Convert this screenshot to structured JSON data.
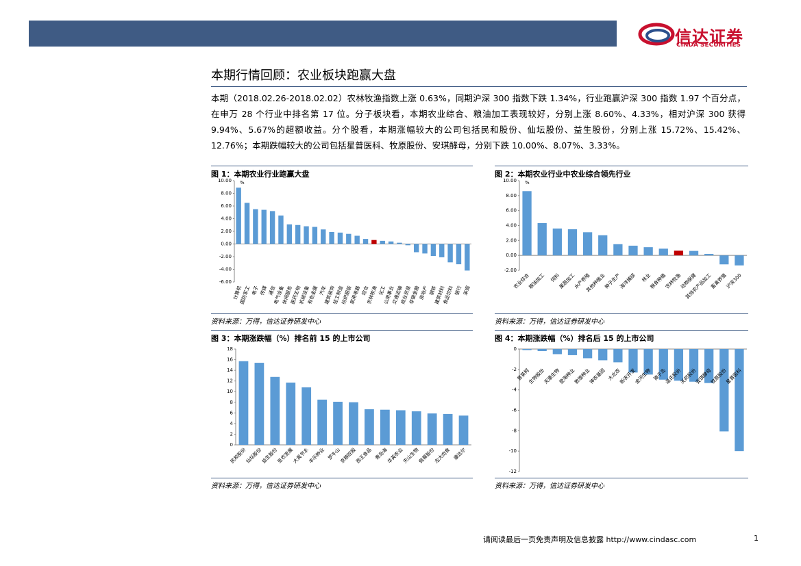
{
  "header": {
    "logo_cn": "信达证券",
    "logo_en": "CINDA SECURITIES"
  },
  "section_title": "本期行情回顾：农业板块跑赢大盘",
  "paragraph": "本期（2018.02.26-2018.02.02）农林牧渔指数上涨 0.63%，同期沪深 300 指数下跌 1.34%，行业跑赢沪深 300 指数 1.97 个百分点，在申万 28 个行业中排名第 17 位。分子板块看，本期农业综合、粮油加工表现较好，分别上涨 8.60%、4.33%，相对沪深 300 获得 9.94%、5.67%的超额收益。分个股看，本期涨幅较大的公司包括民和股份、仙坛股份、益生股份，分别上涨 15.72%、15.42%、12.76%；本期跌幅较大的公司包括星普医科、牧原股份、安琪酵母，分别下跌 10.00%、8.07%、3.33%。",
  "chart_data": [
    {
      "type": "bar",
      "title": "图 1：本期农业行业跑赢大盘",
      "source": "资料来源：万得，信达证券研发中心",
      "unit": "%",
      "color": "#5b9bd5",
      "highlight": {
        "category": "农林牧渔",
        "color": "#c00000"
      },
      "categories": [
        "计算机",
        "国防军工",
        "电子",
        "传媒",
        "通信",
        "电气设备",
        "休闲服务",
        "医药生物",
        "机械设备",
        "有色金属",
        "汽车",
        "建筑装饰",
        "轻工制造",
        "纺织服装",
        "家用电器",
        "综合",
        "农林牧渔",
        "化工",
        "公用事业",
        "交通运输",
        "商业贸易",
        "非银金融",
        "房地产",
        "钢铁",
        "建筑材料",
        "食品饮料",
        "银行",
        "采掘"
      ],
      "values": [
        8.9,
        6.5,
        5.5,
        5.4,
        5.2,
        4.5,
        3.1,
        3.0,
        2.8,
        2.7,
        2.3,
        1.9,
        1.8,
        1.6,
        1.3,
        0.8,
        0.63,
        0.5,
        0.4,
        0.2,
        -0.2,
        -1.3,
        -1.5,
        -1.9,
        -2.1,
        -2.9,
        -3.2,
        -4.2
      ],
      "ylim": [
        -6,
        10
      ],
      "yticks": [
        {
          "value": -6,
          "label": "-6.00"
        },
        {
          "value": -4,
          "label": "-4.00"
        },
        {
          "value": -2,
          "label": "-2.00"
        },
        {
          "value": 0,
          "label": "0.00"
        },
        {
          "value": 2,
          "label": "2.00"
        },
        {
          "value": 4,
          "label": "4.00"
        },
        {
          "value": 6,
          "label": "6.00"
        },
        {
          "value": 8,
          "label": "8.00"
        },
        {
          "value": 10,
          "label": "10.00"
        }
      ]
    },
    {
      "type": "bar",
      "title": "图 2：本期农业行业中农业综合领先行业",
      "source": "资料来源：万得，信达证券研发中心",
      "unit": "%",
      "color": "#5b9bd5",
      "highlight": {
        "category": "农林牧渔",
        "color": "#c00000"
      },
      "categories": [
        "农业综合",
        "粮油加工",
        "饲料",
        "果蔬加工",
        "水产养殖",
        "其他种植业",
        "种子生产",
        "海洋捕捞",
        "林业",
        "粮食种植",
        "农林牧渔",
        "动物保健",
        "其他农产品加工",
        "畜禽养殖",
        "沪深300"
      ],
      "values": [
        8.6,
        4.33,
        3.6,
        3.5,
        3.1,
        2.7,
        1.5,
        1.3,
        1.1,
        0.9,
        0.63,
        0.6,
        0.2,
        -1.2,
        -1.34
      ],
      "ylim": [
        -2,
        10
      ],
      "yticks": [
        {
          "value": -2,
          "label": "-2.00"
        },
        {
          "value": 0,
          "label": "0.00"
        },
        {
          "value": 2,
          "label": "2.00"
        },
        {
          "value": 4,
          "label": "4.00"
        },
        {
          "value": 6,
          "label": "6.00"
        },
        {
          "value": 8,
          "label": "8.00"
        },
        {
          "value": 10,
          "label": "10.00"
        }
      ]
    },
    {
      "type": "bar",
      "title": "图 3：本期涨跌幅（%）排名前 15 的上市公司",
      "source": "资料来源：万得，信达证券研发中心",
      "color": "#5b9bd5",
      "categories": [
        "民和股份",
        "仙坛股份",
        "益生股份",
        "圣农发展",
        "大禹节水",
        "丰乐种业",
        "罗牛山",
        "京粮控股",
        "西王食品",
        "青岛海",
        "华英农业",
        "天山生物",
        "佩蒂股份",
        "龙大肉食",
        "康达尔"
      ],
      "values": [
        15.72,
        15.42,
        12.76,
        11.7,
        10.8,
        8.5,
        8.1,
        8.0,
        6.7,
        6.6,
        6.5,
        6.3,
        5.9,
        5.8,
        5.5
      ],
      "ylim": [
        0,
        18
      ],
      "yticks": [
        0,
        2,
        4,
        6,
        8,
        10,
        12,
        14,
        16,
        18
      ]
    },
    {
      "type": "bar",
      "title": "图 4：本期涨跌幅（%）排名后 15 的上市公司",
      "source": "资料来源：万得，信达证券研发中心",
      "color": "#5b9bd5",
      "categories": [
        "普莱柯",
        "生物股份",
        "天康生物",
        "登海种业",
        "敦煌种业",
        "神农基因",
        "大北农",
        "新农开发",
        "金河生物",
        "獐子岛",
        "温氏股份",
        "天邦股份",
        "安琪酵母",
        "牧原股份",
        "星普医科"
      ],
      "values": [
        -0.1,
        -0.2,
        -0.5,
        -0.6,
        -0.9,
        -1.1,
        -1.3,
        -2.3,
        -2.5,
        -3.0,
        -3.1,
        -3.2,
        -3.33,
        -8.07,
        -10.0
      ],
      "ylim": [
        -12,
        0
      ],
      "yticks": [
        -12,
        -10,
        -8,
        -6,
        -4,
        -2,
        0
      ]
    }
  ],
  "footer": {
    "note": "请阅读最后一页免责声明及信息披露 http://www.cindasc.com",
    "page": "1"
  }
}
